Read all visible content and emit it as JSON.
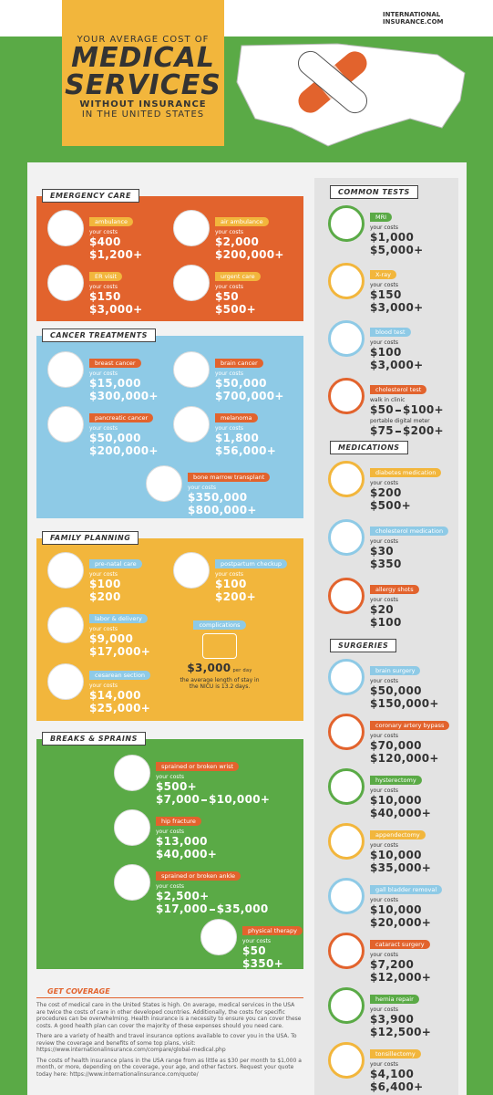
{
  "header": {
    "line1": "YOUR AVERAGE COST OF",
    "line2": "MEDICAL",
    "line3": "SERVICES",
    "line4": "WITHOUT INSURANCE",
    "line5": "IN THE UNITED STATES",
    "brand1": "INTERNATIONAL",
    "brand2": "INSURANCE.COM"
  },
  "left_sections": [
    {
      "title": "EMERGENCY CARE",
      "items": [
        {
          "name": "ambulance",
          "label": "your costs",
          "costs": [
            "$400",
            "$1,200+"
          ]
        },
        {
          "name": "air ambulance",
          "label": "your costs",
          "costs": [
            "$2,000",
            "$200,000+"
          ]
        },
        {
          "name": "ER visit",
          "label": "your costs",
          "costs": [
            "$150",
            "$3,000+"
          ]
        },
        {
          "name": "urgent care",
          "label": "your costs",
          "costs": [
            "$50",
            "$500+"
          ]
        }
      ]
    },
    {
      "title": "CANCER TREATMENTS",
      "items": [
        {
          "name": "breast cancer",
          "label": "your costs",
          "costs": [
            "$15,000",
            "$300,000+"
          ]
        },
        {
          "name": "brain cancer",
          "label": "your costs",
          "costs": [
            "$50,000",
            "$700,000+"
          ]
        },
        {
          "name": "pancreatic cancer",
          "label": "your costs",
          "costs": [
            "$50,000",
            "$200,000+"
          ]
        },
        {
          "name": "melanoma",
          "label": "your costs",
          "costs": [
            "$1,800",
            "$56,000+"
          ]
        },
        {
          "name": "bone marrow transplant",
          "label": "your costs",
          "costs": [
            "$350,000",
            "$800,000+"
          ]
        }
      ]
    },
    {
      "title": "FAMILY PLANNING",
      "items": [
        {
          "name": "pre-natal care",
          "label": "your costs",
          "costs": [
            "$100",
            "$200"
          ]
        },
        {
          "name": "postpartum checkup",
          "label": "your costs",
          "costs": [
            "$100",
            "$200+"
          ]
        },
        {
          "name": "labor & delivery",
          "label": "your costs",
          "costs": [
            "$9,000",
            "$17,000+"
          ]
        },
        {
          "name": "cesarean section",
          "label": "your costs",
          "costs": [
            "$14,000",
            "$25,000+"
          ]
        }
      ]
    },
    {
      "title": "BREAKS & SPRAINS",
      "items": [
        {
          "name": "sprained or broken wrist",
          "label": "your costs",
          "costs": [
            "$500+",
            "$7,000",
            "$10,000+"
          ]
        },
        {
          "name": "hip fracture",
          "label": "your costs",
          "costs": [
            "$13,000",
            "$40,000+"
          ]
        },
        {
          "name": "sprained or broken ankle",
          "label": "your costs",
          "costs": [
            "$2,500+",
            "$17,000",
            "$35,000"
          ]
        },
        {
          "name": "physical therapy",
          "label": "your costs",
          "costs": [
            "$50",
            "$350+"
          ]
        }
      ]
    }
  ],
  "complications": {
    "title": "complications",
    "cost": "$3,000",
    "unit": "per day",
    "note": "the average length of stay in the NICU is 13.2 days."
  },
  "right_sections": [
    {
      "title": "COMMON TESTS",
      "items": [
        {
          "name": "MRI",
          "label": "your costs",
          "costs": [
            "$1,000",
            "$5,000+"
          ]
        },
        {
          "name": "X-ray",
          "label": "your costs",
          "costs": [
            "$150",
            "$3,000+"
          ]
        },
        {
          "name": "blood test",
          "label": "your costs",
          "costs": [
            "$100",
            "$3,000+"
          ]
        },
        {
          "name": "cholesterol test",
          "label": "walk in clinic",
          "costs": [
            "$50",
            "$100+"
          ],
          "label2": "portable digital meter",
          "costs2": [
            "$75",
            "$200+"
          ]
        }
      ]
    },
    {
      "title": "MEDICATIONS",
      "items": [
        {
          "name": "diabetes medication",
          "label": "your costs",
          "costs": [
            "$200",
            "$500+"
          ]
        },
        {
          "name": "cholesterol medication",
          "label": "your costs",
          "costs": [
            "$30",
            "$350"
          ]
        },
        {
          "name": "allergy shots",
          "label": "your costs",
          "costs": [
            "$20",
            "$100"
          ]
        }
      ]
    },
    {
      "title": "SURGERIES",
      "items": [
        {
          "name": "brain surgery",
          "label": "your costs",
          "costs": [
            "$50,000",
            "$150,000+"
          ]
        },
        {
          "name": "coronary artery bypass",
          "label": "your costs",
          "costs": [
            "$70,000",
            "$120,000+"
          ]
        },
        {
          "name": "hysterectomy",
          "label": "your costs",
          "costs": [
            "$10,000",
            "$40,000+"
          ]
        },
        {
          "name": "appendectomy",
          "label": "your costs",
          "costs": [
            "$10,000",
            "$35,000+"
          ]
        },
        {
          "name": "gall bladder removal",
          "label": "your costs",
          "costs": [
            "$10,000",
            "$20,000+"
          ]
        },
        {
          "name": "cataract surgery",
          "label": "your costs",
          "costs": [
            "$7,200",
            "$12,000+"
          ]
        },
        {
          "name": "hernia repair",
          "label": "your costs",
          "costs": [
            "$3,900",
            "$12,500+"
          ]
        },
        {
          "name": "tonsillectomy",
          "label": "your costs",
          "costs": [
            "$4,100",
            "$6,400+"
          ]
        }
      ]
    }
  ],
  "coverage": {
    "title": "GET COVERAGE",
    "paragraphs": [
      "The cost of medical care in the United States is high. On average, medical services in the USA are twice the costs of care in other developed countries. Additionally, the costs for specific procedures can be overwhelming. Health insurance is a necessity to ensure you can cover these costs. A good health plan can cover the majority of these expenses should you need care.",
      "There are a variety of health and travel insurance options available to cover you in the USA. To review the coverage and benefits of some top plans, visit: https://www.internationalinsurance.com/compare/global-medical.php",
      "The costs of health insurance plans in the USA range from as little as $30 per month to $1,000 a month, or more, depending on the coverage, your age, and other factors. Request your quote today here: https://www.internationalinsurance.com/quote/"
    ]
  }
}
